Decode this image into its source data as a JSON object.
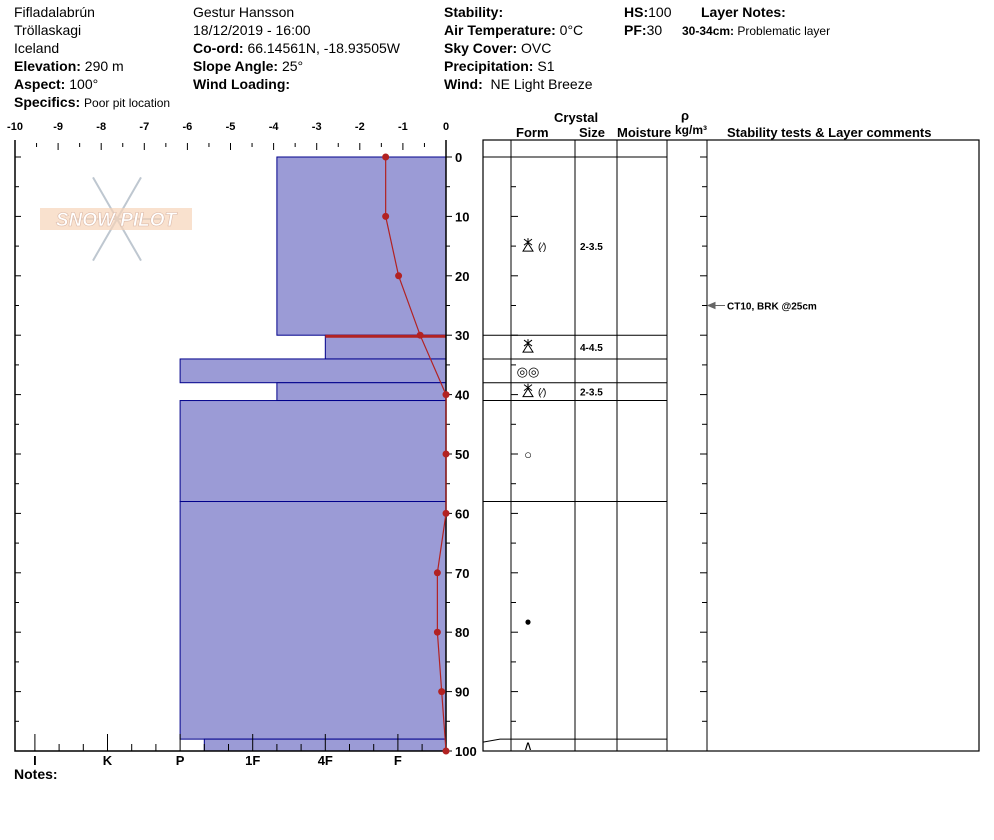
{
  "header": {
    "location": "Fifladalabrún",
    "range": "Tröllaskagi",
    "country": "Iceland",
    "elevation_label": "Elevation:",
    "elevation": "290 m",
    "aspect_label": "Aspect:",
    "aspect": "100°",
    "specifics_label": "Specifics:",
    "specifics": "Poor pit location",
    "observer": "Gestur Hansson",
    "datetime": "18/12/2019 - 16:00",
    "coord_label": "Co-ord:",
    "coord": "66.14561N, -18.93505W",
    "slope_label": "Slope Angle:",
    "slope": "25°",
    "wind_loading_label": "Wind Loading:",
    "wind_loading": "",
    "stability_label": "Stability:",
    "stability": "",
    "air_temp_label": "Air Temperature:",
    "air_temp": "0°C",
    "sky_label": "Sky Cover:",
    "sky": "OVC",
    "precip_label": "Precipitation:",
    "precip": "S1",
    "wind_label": "Wind:",
    "wind": "NE Light Breeze",
    "hs_label": "HS:",
    "hs": "100",
    "pf_label": "PF:",
    "pf": "30",
    "layer_notes_label": "Layer Notes:",
    "layer_note_range": "30-34cm:",
    "layer_note_text": "Problematic layer"
  },
  "notes_label": "Notes:",
  "logo_text": "SNOW PILOT",
  "table_headers": {
    "crystal": "Crystal",
    "form": "Form",
    "size": "Size",
    "moisture": "Moisture",
    "rho": "ρ",
    "density_unit": "kg/m³",
    "comments": "Stability tests & Layer comments"
  },
  "colors": {
    "layer_fill": "#9b9bd6",
    "layer_edge": "#00008b",
    "temperature": "#b22222"
  },
  "chart_data": {
    "type": "snow-profile",
    "temperature_axis": {
      "ticks": [
        "-10",
        "-9",
        "-8",
        "-7",
        "-6",
        "-5",
        "-4",
        "-3",
        "-2",
        "-1",
        "0"
      ],
      "range": [
        -10,
        0
      ]
    },
    "depth_axis": {
      "ticks": [
        "0",
        "10",
        "20",
        "30",
        "40",
        "50",
        "60",
        "70",
        "80",
        "90",
        "100"
      ],
      "range": [
        0,
        100
      ]
    },
    "hardness_axis": {
      "ticks": [
        "I",
        "K",
        "P",
        "1F",
        "4F",
        "F"
      ]
    },
    "temperature_profile": [
      {
        "depth": 0,
        "temp": -1.4
      },
      {
        "depth": 10,
        "temp": -1.4
      },
      {
        "depth": 20,
        "temp": -1.1
      },
      {
        "depth": 30,
        "temp": -0.6
      },
      {
        "depth": 40,
        "temp": 0
      },
      {
        "depth": 50,
        "temp": 0
      },
      {
        "depth": 60,
        "temp": 0
      },
      {
        "depth": 70,
        "temp": -0.2
      },
      {
        "depth": 80,
        "temp": -0.2
      },
      {
        "depth": 90,
        "temp": -0.1
      },
      {
        "depth": 100,
        "temp": 0
      }
    ],
    "layers": [
      {
        "top": 0,
        "bottom": 30,
        "hardness": "1F-",
        "form": "faceted-rounded",
        "form_text": "(⁄)",
        "size": "2-3.5"
      },
      {
        "top": 30,
        "bottom": 34,
        "hardness": "4F",
        "form": "faceted",
        "form_text": "",
        "size": "4-4.5"
      },
      {
        "top": 34,
        "bottom": 38,
        "hardness": "P",
        "form": "melt-clusters",
        "form_text": "",
        "size": ""
      },
      {
        "top": 38,
        "bottom": 41,
        "hardness": "1F-",
        "form": "faceted-rounded",
        "form_text": "(⁄)",
        "size": "2-3.5"
      },
      {
        "top": 41,
        "bottom": 58,
        "hardness": "P",
        "form": "rounded",
        "form_text": "",
        "size": ""
      },
      {
        "top": 58,
        "bottom": 98,
        "hardness": "P",
        "form": "ice",
        "form_text": "",
        "size": ""
      },
      {
        "top": 98,
        "bottom": 100,
        "hardness": "P-",
        "form": "depth-hoar",
        "form_text": "",
        "size": ""
      }
    ],
    "problematic_layer_depth": 30,
    "stability_tests": [
      {
        "depth": 25,
        "text": "CT10, BRK @25cm"
      }
    ]
  }
}
